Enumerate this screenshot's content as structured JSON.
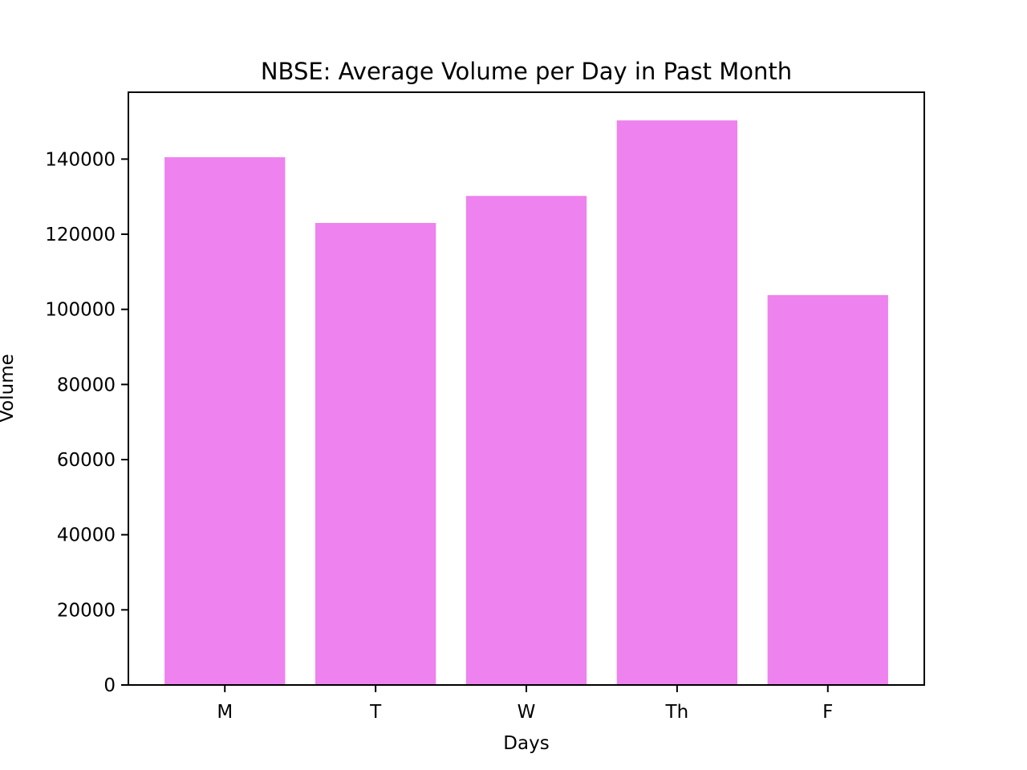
{
  "chart_data": {
    "type": "bar",
    "title": "NBSE: Average Volume per Day in Past Month",
    "xlabel": "Days",
    "ylabel": "Volume",
    "categories": [
      "M",
      "T",
      "W",
      "Th",
      "F"
    ],
    "values": [
      140500,
      123000,
      130200,
      150300,
      103800
    ],
    "ylim": [
      0,
      157800
    ],
    "yticks": [
      0,
      20000,
      40000,
      60000,
      80000,
      100000,
      120000,
      140000
    ],
    "ytick_labels": [
      "0",
      "20000",
      "40000",
      "60000",
      "80000",
      "100000",
      "120000",
      "140000"
    ],
    "bar_color": "#ee82ee",
    "grid": false,
    "legend": "none"
  }
}
